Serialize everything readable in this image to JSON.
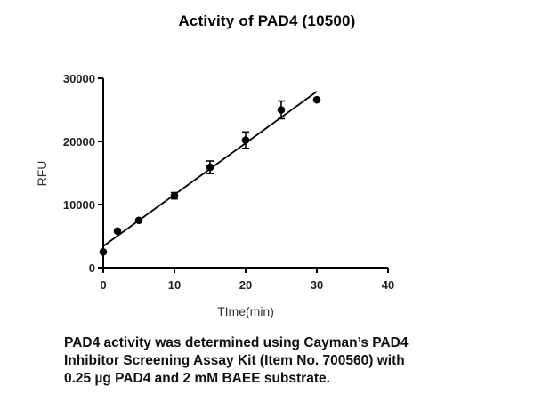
{
  "title": "Activity of PAD4 (10500)",
  "caption": {
    "lines": [
      "PAD4 activity was determined using Cayman’s PAD4",
      "Inhibitor Screening Assay Kit (Item No. 700560) with",
      "0.25 µg PAD4 and 2 mM BAEE substrate."
    ]
  },
  "chart_data": {
    "type": "scatter",
    "title": "Activity of PAD4 (10500)",
    "xlabel": "TIme(min)",
    "ylabel": "RFU",
    "xlim": [
      0,
      40
    ],
    "ylim": [
      0,
      30000
    ],
    "x_ticks": [
      0,
      10,
      20,
      30,
      40
    ],
    "y_ticks": [
      0,
      10000,
      20000,
      30000
    ],
    "grid": false,
    "legend": null,
    "series": [
      {
        "name": "PAD4 activity",
        "marker": "filled-circle",
        "x": [
          0,
          2,
          5,
          10,
          15,
          20,
          25,
          30
        ],
        "y": [
          2500,
          5800,
          7500,
          11400,
          15900,
          20200,
          25000,
          26600
        ],
        "error": [
          0,
          0,
          0,
          500,
          1000,
          1300,
          1400,
          0
        ]
      }
    ],
    "fit_line": {
      "type": "linear",
      "x": [
        0,
        30
      ],
      "y": [
        3400,
        27900
      ]
    },
    "color": "#000000"
  }
}
